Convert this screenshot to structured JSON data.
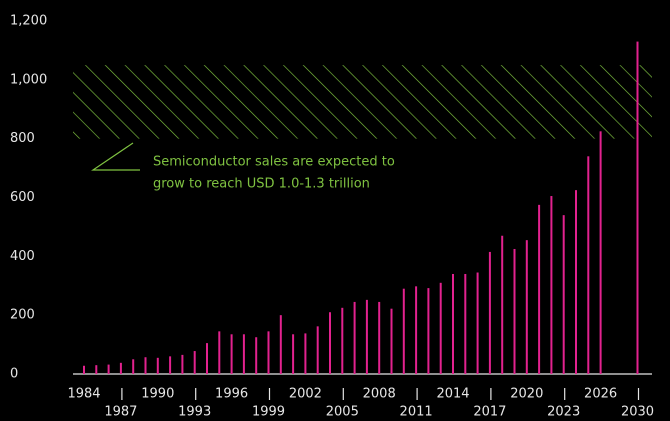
{
  "chart_data": {
    "type": "bar",
    "categories": [
      "1984",
      null,
      null,
      "1987",
      null,
      null,
      "1990",
      null,
      null,
      "1993",
      null,
      null,
      "1996",
      null,
      null,
      "1999",
      null,
      null,
      "2002",
      null,
      null,
      "2005",
      null,
      null,
      "2008",
      null,
      null,
      "2011",
      null,
      null,
      "2014",
      null,
      null,
      "2017",
      null,
      null,
      "2020",
      null,
      null,
      "2023",
      null,
      null,
      "2026",
      null,
      null,
      "2030"
    ],
    "values": [
      28,
      30,
      32,
      38,
      50,
      57,
      55,
      60,
      65,
      78,
      105,
      145,
      135,
      135,
      125,
      145,
      200,
      135,
      138,
      162,
      210,
      225,
      245,
      252,
      245,
      222,
      290,
      298,
      292,
      310,
      340,
      340,
      345,
      415,
      470,
      425,
      455,
      575,
      605,
      540,
      625,
      740,
      825,
      null,
      null,
      1130
    ],
    "color": "#e3228f",
    "ylim": [
      0,
      1200
    ],
    "yticks": [
      0,
      200,
      400,
      600,
      800,
      {
        "value": 1000,
        "label": "1,000"
      },
      {
        "value": 1200,
        "label": "1,200"
      }
    ],
    "band": [
      800,
      1050
    ],
    "band_color": "#7fc241",
    "annotation": [
      "Semiconductor sales are expected to",
      "grow to reach USD 1.0-1.3 trillion"
    ]
  }
}
